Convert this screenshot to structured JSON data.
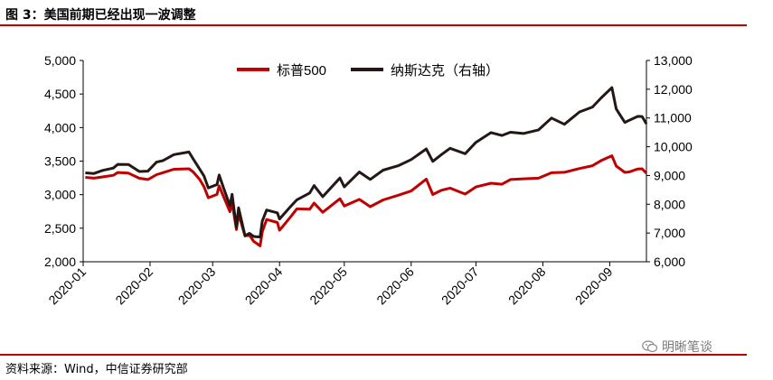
{
  "figure": {
    "title": "图 3：美国前期已经出现一波调整",
    "source": "资料来源：Wind，中信证券研究部",
    "watermark": "明晰笔谈",
    "watermark_icon": "wechat-icon"
  },
  "colors": {
    "rule": "#c00000",
    "sp500": "#c00000",
    "nasdaq": "#231815"
  },
  "chart_data": {
    "type": "line",
    "title": "",
    "legend_position": "top-center",
    "grid": false,
    "x_ticks": [
      "2020-01",
      "2020-02",
      "2020-03",
      "2020-04",
      "2020-05",
      "2020-06",
      "2020-07",
      "2020-08",
      "2020-09"
    ],
    "xlim": [
      "2020-01-01",
      "2020-09-18"
    ],
    "y_left": {
      "ylim": [
        2000,
        5000
      ],
      "ticks": [
        "2,000",
        "2,500",
        "3,000",
        "3,500",
        "4,000",
        "4,500",
        "5,000"
      ],
      "tick_values": [
        2000,
        2500,
        3000,
        3500,
        4000,
        4500,
        5000
      ]
    },
    "y_right": {
      "ylim": [
        6000,
        13000
      ],
      "ticks": [
        "6,000",
        "7,000",
        "8,000",
        "9,000",
        "10,000",
        "11,000",
        "12,000",
        "13,000"
      ],
      "tick_values": [
        6000,
        7000,
        8000,
        9000,
        10000,
        11000,
        12000,
        13000
      ]
    },
    "series": [
      {
        "name": "标普500",
        "axis": "left",
        "color": "#c00000",
        "points": [
          [
            "2020-01-02",
            3258
          ],
          [
            "2020-01-06",
            3246
          ],
          [
            "2020-01-10",
            3265
          ],
          [
            "2020-01-15",
            3289
          ],
          [
            "2020-01-17",
            3330
          ],
          [
            "2020-01-22",
            3321
          ],
          [
            "2020-01-27",
            3244
          ],
          [
            "2020-01-31",
            3225
          ],
          [
            "2020-02-04",
            3298
          ],
          [
            "2020-02-07",
            3328
          ],
          [
            "2020-02-12",
            3379
          ],
          [
            "2020-02-19",
            3386
          ],
          [
            "2020-02-21",
            3338
          ],
          [
            "2020-02-24",
            3226
          ],
          [
            "2020-02-26",
            3116
          ],
          [
            "2020-02-28",
            2954
          ],
          [
            "2020-03-03",
            3003
          ],
          [
            "2020-03-04",
            3130
          ],
          [
            "2020-03-06",
            2972
          ],
          [
            "2020-03-09",
            2746
          ],
          [
            "2020-03-10",
            2882
          ],
          [
            "2020-03-12",
            2480
          ],
          [
            "2020-03-13",
            2711
          ],
          [
            "2020-03-16",
            2386
          ],
          [
            "2020-03-18",
            2398
          ],
          [
            "2020-03-20",
            2304
          ],
          [
            "2020-03-23",
            2237
          ],
          [
            "2020-03-24",
            2447
          ],
          [
            "2020-03-26",
            2630
          ],
          [
            "2020-03-31",
            2585
          ],
          [
            "2020-04-01",
            2470
          ],
          [
            "2020-04-06",
            2663
          ],
          [
            "2020-04-09",
            2789
          ],
          [
            "2020-04-15",
            2783
          ],
          [
            "2020-04-17",
            2875
          ],
          [
            "2020-04-21",
            2737
          ],
          [
            "2020-04-29",
            2939
          ],
          [
            "2020-05-01",
            2831
          ],
          [
            "2020-05-08",
            2929
          ],
          [
            "2020-05-13",
            2820
          ],
          [
            "2020-05-19",
            2922
          ],
          [
            "2020-05-26",
            2992
          ],
          [
            "2020-06-01",
            3055
          ],
          [
            "2020-06-08",
            3232
          ],
          [
            "2020-06-11",
            3002
          ],
          [
            "2020-06-15",
            3066
          ],
          [
            "2020-06-19",
            3098
          ],
          [
            "2020-06-26",
            3009
          ],
          [
            "2020-07-01",
            3115
          ],
          [
            "2020-07-08",
            3170
          ],
          [
            "2020-07-13",
            3155
          ],
          [
            "2020-07-17",
            3225
          ],
          [
            "2020-07-23",
            3236
          ],
          [
            "2020-07-30",
            3246
          ],
          [
            "2020-08-05",
            3327
          ],
          [
            "2020-08-11",
            3333
          ],
          [
            "2020-08-18",
            3390
          ],
          [
            "2020-08-24",
            3431
          ],
          [
            "2020-08-28",
            3508
          ],
          [
            "2020-09-02",
            3580
          ],
          [
            "2020-09-04",
            3427
          ],
          [
            "2020-09-08",
            3332
          ],
          [
            "2020-09-10",
            3339
          ],
          [
            "2020-09-14",
            3383
          ],
          [
            "2020-09-16",
            3385
          ],
          [
            "2020-09-18",
            3320
          ]
        ]
      },
      {
        "name": "纳斯达克（右轴）",
        "axis": "right",
        "color": "#231815",
        "points": [
          [
            "2020-01-02",
            9092
          ],
          [
            "2020-01-06",
            9071
          ],
          [
            "2020-01-10",
            9178
          ],
          [
            "2020-01-15",
            9258
          ],
          [
            "2020-01-17",
            9388
          ],
          [
            "2020-01-22",
            9383
          ],
          [
            "2020-01-27",
            9139
          ],
          [
            "2020-01-31",
            9150
          ],
          [
            "2020-02-04",
            9467
          ],
          [
            "2020-02-07",
            9520
          ],
          [
            "2020-02-12",
            9725
          ],
          [
            "2020-02-19",
            9817
          ],
          [
            "2020-02-21",
            9576
          ],
          [
            "2020-02-24",
            9221
          ],
          [
            "2020-02-26",
            8980
          ],
          [
            "2020-02-28",
            8567
          ],
          [
            "2020-03-03",
            8684
          ],
          [
            "2020-03-04",
            9018
          ],
          [
            "2020-03-06",
            8575
          ],
          [
            "2020-03-09",
            7950
          ],
          [
            "2020-03-10",
            8344
          ],
          [
            "2020-03-12",
            7201
          ],
          [
            "2020-03-13",
            7875
          ],
          [
            "2020-03-16",
            6904
          ],
          [
            "2020-03-18",
            6989
          ],
          [
            "2020-03-20",
            6879
          ],
          [
            "2020-03-23",
            6860
          ],
          [
            "2020-03-24",
            7417
          ],
          [
            "2020-03-26",
            7798
          ],
          [
            "2020-03-31",
            7700
          ],
          [
            "2020-04-01",
            7487
          ],
          [
            "2020-04-06",
            7913
          ],
          [
            "2020-04-09",
            8153
          ],
          [
            "2020-04-15",
            8393
          ],
          [
            "2020-04-17",
            8650
          ],
          [
            "2020-04-21",
            8263
          ],
          [
            "2020-04-29",
            8914
          ],
          [
            "2020-05-01",
            8604
          ],
          [
            "2020-05-08",
            9121
          ],
          [
            "2020-05-13",
            8863
          ],
          [
            "2020-05-19",
            9185
          ],
          [
            "2020-05-26",
            9340
          ],
          [
            "2020-06-01",
            9552
          ],
          [
            "2020-06-08",
            9924
          ],
          [
            "2020-06-11",
            9492
          ],
          [
            "2020-06-15",
            9726
          ],
          [
            "2020-06-19",
            9946
          ],
          [
            "2020-06-26",
            9757
          ],
          [
            "2020-07-01",
            10154
          ],
          [
            "2020-07-08",
            10492
          ],
          [
            "2020-07-13",
            10390
          ],
          [
            "2020-07-17",
            10503
          ],
          [
            "2020-07-23",
            10461
          ],
          [
            "2020-07-30",
            10587
          ],
          [
            "2020-08-05",
            10998
          ],
          [
            "2020-08-11",
            10782
          ],
          [
            "2020-08-18",
            11210
          ],
          [
            "2020-08-24",
            11379
          ],
          [
            "2020-08-28",
            11696
          ],
          [
            "2020-09-02",
            12056
          ],
          [
            "2020-09-04",
            11313
          ],
          [
            "2020-09-08",
            10847
          ],
          [
            "2020-09-10",
            10919
          ],
          [
            "2020-09-14",
            11057
          ],
          [
            "2020-09-16",
            11050
          ],
          [
            "2020-09-18",
            10793
          ]
        ]
      }
    ]
  }
}
